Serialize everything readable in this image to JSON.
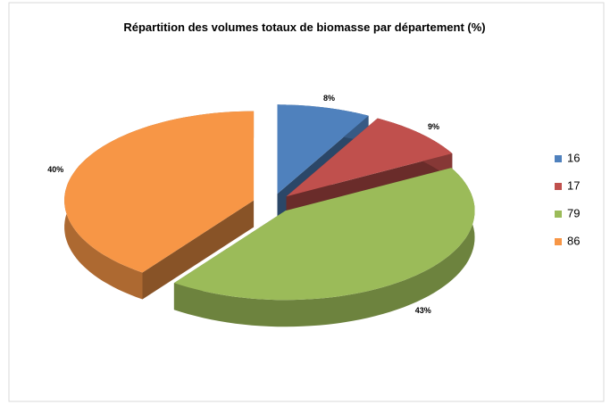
{
  "chart_data": {
    "type": "pie",
    "title": "Répartition des volumes totaux de biomasse par département (%)",
    "categories": [
      "16",
      "17",
      "79",
      "86"
    ],
    "values": [
      8,
      9,
      43,
      40
    ],
    "value_labels": [
      "8%",
      "9%",
      "43%",
      "40%"
    ],
    "colors": [
      "#4f81bd",
      "#c0504d",
      "#9bbb59",
      "#f79646"
    ],
    "legend": "right"
  }
}
